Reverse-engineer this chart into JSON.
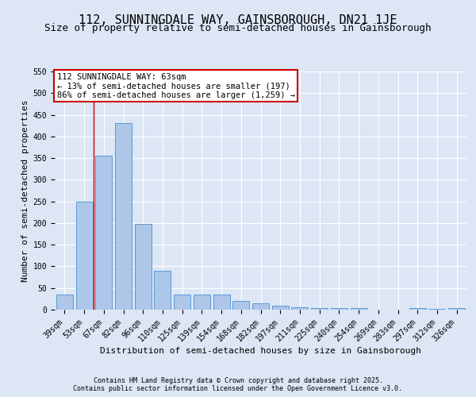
{
  "title": "112, SUNNINGDALE WAY, GAINSBOROUGH, DN21 1JE",
  "subtitle": "Size of property relative to semi-detached houses in Gainsborough",
  "xlabel": "Distribution of semi-detached houses by size in Gainsborough",
  "ylabel": "Number of semi-detached properties",
  "categories": [
    "39sqm",
    "53sqm",
    "67sqm",
    "82sqm",
    "96sqm",
    "110sqm",
    "125sqm",
    "139sqm",
    "154sqm",
    "168sqm",
    "182sqm",
    "197sqm",
    "211sqm",
    "225sqm",
    "240sqm",
    "254sqm",
    "269sqm",
    "283sqm",
    "297sqm",
    "312sqm",
    "326sqm"
  ],
  "values": [
    35,
    250,
    355,
    430,
    198,
    90,
    35,
    35,
    35,
    20,
    15,
    9,
    5,
    3,
    3,
    3,
    0,
    0,
    4,
    1,
    3
  ],
  "bar_color": "#aec6e8",
  "bar_edge_color": "#5a9bd5",
  "annotation_box_text": "112 SUNNINGDALE WAY: 63sqm\n← 13% of semi-detached houses are smaller (197)\n86% of semi-detached houses are larger (1,259) →",
  "annotation_box_color": "#ffffff",
  "annotation_box_edge_color": "#cc0000",
  "ylim": [
    0,
    550
  ],
  "yticks": [
    0,
    50,
    100,
    150,
    200,
    250,
    300,
    350,
    400,
    450,
    500,
    550
  ],
  "bg_color": "#dce6f5",
  "plot_bg_color": "#dce6f5",
  "footer_line1": "Contains HM Land Registry data © Crown copyright and database right 2025.",
  "footer_line2": "Contains public sector information licensed under the Open Government Licence v3.0.",
  "title_fontsize": 11,
  "subtitle_fontsize": 9,
  "axis_label_fontsize": 8,
  "tick_fontsize": 7,
  "annotation_fontsize": 7.5,
  "footer_fontsize": 6,
  "red_line_color": "#cc0000",
  "grid_color": "#ffffff",
  "red_line_x": 1.5
}
